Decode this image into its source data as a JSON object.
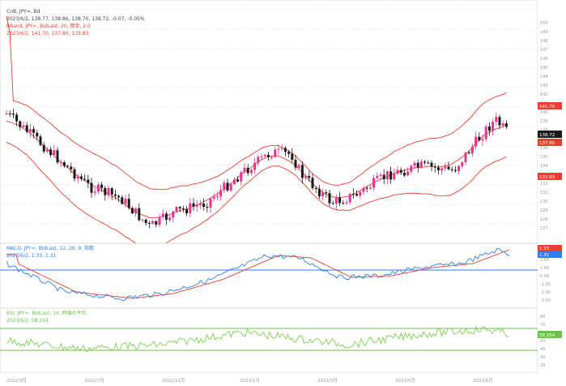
{
  "main_panel": {
    "symbol_line": "CnB, JPY=, Bd",
    "ohlc_line": "2023/6/2, 138.77, 138.86, 138.70, 138.72, -0.07, -0.05%",
    "bbands_line": "BBand, JPY=, BidLast, 20, 簡単, 2.0",
    "bbands_values": "2023/6/2, 141.70, 137.80, 133.83",
    "axis_ticks": [
      "150",
      "149",
      "148",
      "147",
      "146",
      "145",
      "144",
      "143",
      "142",
      "141",
      "140",
      "139",
      "138",
      "137",
      "136",
      "135",
      "134",
      "133",
      "132",
      "131",
      "130",
      "129",
      "128",
      "127"
    ],
    "price_badges": [
      {
        "value": "141.70",
        "color": "#e8402f"
      },
      {
        "value": "138.72",
        "color": "#1a1a1a"
      },
      {
        "value": "137.80",
        "color": "#e8402f"
      },
      {
        "value": "133.83",
        "color": "#e8402f"
      }
    ]
  },
  "macd_panel": {
    "title": "MACD, JPY=, BidLast, 12, 26, 9, 指数",
    "values": "2023/6/2, 1.33, 1.31",
    "axis_ticks": [
      "3.00",
      "2.00",
      "1.00",
      "0.00",
      "-1.00",
      "-2.00",
      "-3.00"
    ],
    "badges": [
      {
        "value": "1.33",
        "color": "#e8402f"
      },
      {
        "value": "1.31",
        "color": "#2f7fe8"
      }
    ]
  },
  "rsi_panel": {
    "title": "RSI, JPY=, BidLast, 14, 終値の平均",
    "values": "2023/6/2, 58.254",
    "axis_ticks": [
      "80",
      "70",
      "60",
      "50",
      "40",
      "30",
      "20"
    ],
    "badge": {
      "value": "58.254",
      "color": "#6cc24a"
    }
  },
  "x_axis_labels": [
    "2022/3月",
    "2022/7月",
    "2022/11月",
    "2023/1月",
    "2023/3月",
    "2023/5月",
    "2023/6月"
  ],
  "colors": {
    "bull": "#e8348f",
    "bear": "#1a1a1a",
    "band": "#e8402f",
    "macd": "#2f7fe8",
    "signal": "#e8402f",
    "rsi": "#7ccf4e",
    "level": "#2f7fe8"
  }
}
